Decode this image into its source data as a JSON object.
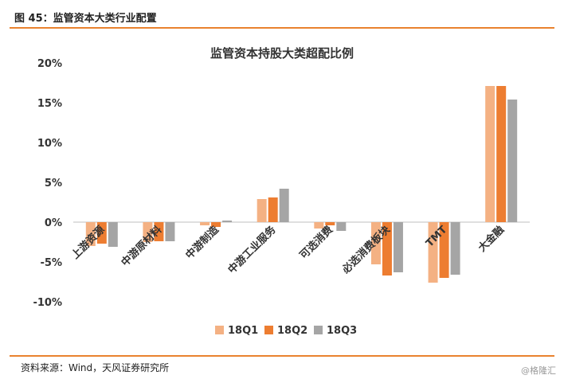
{
  "figure": {
    "label": "图 45：监管资本大类行业配置",
    "source": "资料来源：Wind，天风证券研究所",
    "watermark": "@格隆汇"
  },
  "colors": {
    "accent_line": "#E9822E",
    "series": [
      "#F4B183",
      "#ED7D31",
      "#A5A5A5"
    ]
  },
  "chart_data": {
    "type": "bar",
    "title": "监管资本持股大类超配比例",
    "categories": [
      "上游资源",
      "中游原材料",
      "中游制造",
      "中游工业服务",
      "可选消费",
      "必选消费板块",
      "TMT",
      "大金融"
    ],
    "series": [
      {
        "name": "18Q1",
        "values": [
          -3.0,
          -2.5,
          -0.4,
          2.9,
          -0.8,
          -5.3,
          -7.6,
          17.1
        ]
      },
      {
        "name": "18Q2",
        "values": [
          -2.7,
          -2.4,
          -0.6,
          3.1,
          -0.4,
          -6.7,
          -7.0,
          17.1
        ]
      },
      {
        "name": "18Q3",
        "values": [
          -3.1,
          -2.4,
          0.2,
          4.2,
          -1.1,
          -6.3,
          -6.6,
          15.4
        ]
      }
    ],
    "ylim": [
      -10,
      20
    ],
    "yticks": [
      "-10%",
      "-5%",
      "0%",
      "5%",
      "10%",
      "15%",
      "20%"
    ],
    "ytick_values": [
      -10,
      -5,
      0,
      5,
      10,
      15,
      20
    ],
    "legend_position": "bottom",
    "grid": false
  }
}
